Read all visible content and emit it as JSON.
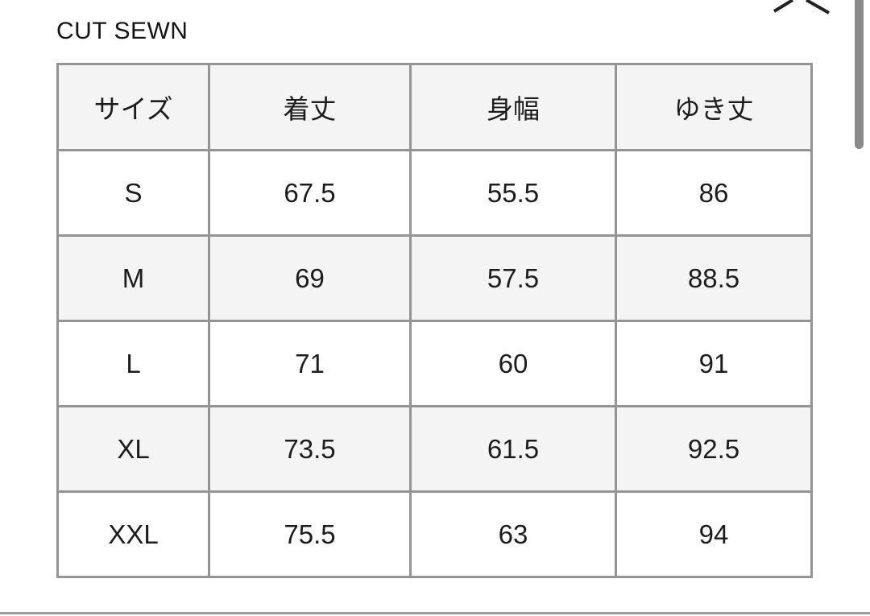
{
  "page": {
    "title": "CUT SEWN"
  },
  "table": {
    "columns": [
      "サイズ",
      "着丈",
      "身幅",
      "ゆき丈"
    ],
    "rows": [
      [
        "S",
        "67.5",
        "55.5",
        "86"
      ],
      [
        "M",
        "69",
        "57.5",
        "88.5"
      ],
      [
        "L",
        "71",
        "60",
        "91"
      ],
      [
        "XL",
        "73.5",
        "61.5",
        "92.5"
      ],
      [
        "XXL",
        "75.5",
        "63",
        "94"
      ]
    ]
  },
  "icons": {
    "close": "close-icon"
  },
  "colors": {
    "border": "#949494",
    "stripe": "#f4f4f4",
    "text": "#1c1c1c",
    "scrollbar": "#8b8b8b",
    "divider": "#9d9d9d",
    "bg": "#ffffff"
  }
}
